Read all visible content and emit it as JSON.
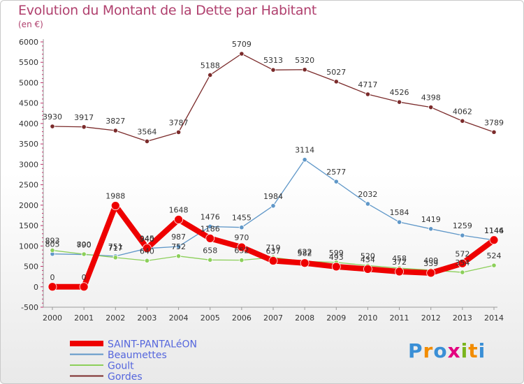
{
  "title": "Evolution du Montant de la Dette par Habitant",
  "unit": "(en €)",
  "brand": "Proxiti",
  "chart_data": {
    "type": "line",
    "x": [
      "2000",
      "2001",
      "2002",
      "2003",
      "2004",
      "2005",
      "2006",
      "2007",
      "2008",
      "2009",
      "2010",
      "2011",
      "2012",
      "2013",
      "2014"
    ],
    "ylim": [
      -500,
      6000
    ],
    "yticks": [
      -500,
      0,
      500,
      1000,
      1500,
      2000,
      2500,
      3000,
      3500,
      4000,
      4500,
      5000,
      5500,
      6000
    ],
    "grid": false,
    "legend_position": "bottom-left",
    "series": [
      {
        "name": "Gordes",
        "color": "#7b2b2b",
        "width": 1.3,
        "values": [
          3930,
          3917,
          3827,
          3564,
          3787,
          5188,
          5709,
          5313,
          5320,
          5027,
          4717,
          4526,
          4398,
          4062,
          3789
        ]
      },
      {
        "name": "Beaumettes",
        "color": "#5f97c8",
        "width": 1.3,
        "values": [
          805,
          790,
          751,
          940,
          987,
          1476,
          1455,
          1984,
          3114,
          2577,
          2032,
          1584,
          1419,
          1259,
          1144
        ]
      },
      {
        "name": "Goult",
        "color": "#8ccf5a",
        "width": 1.3,
        "values": [
          893,
          800,
          717,
          640,
          752,
          658,
          652,
          719,
          622,
          599,
          520,
          458,
          409,
          354,
          524
        ]
      },
      {
        "name": "SAINT-PANTALéON",
        "color": "#ee0000",
        "width": 8,
        "values": [
          0,
          0,
          1988,
          945,
          1648,
          1186,
          970,
          637,
          582,
          493,
          434,
          372,
          339,
          572,
          1146
        ]
      }
    ]
  }
}
